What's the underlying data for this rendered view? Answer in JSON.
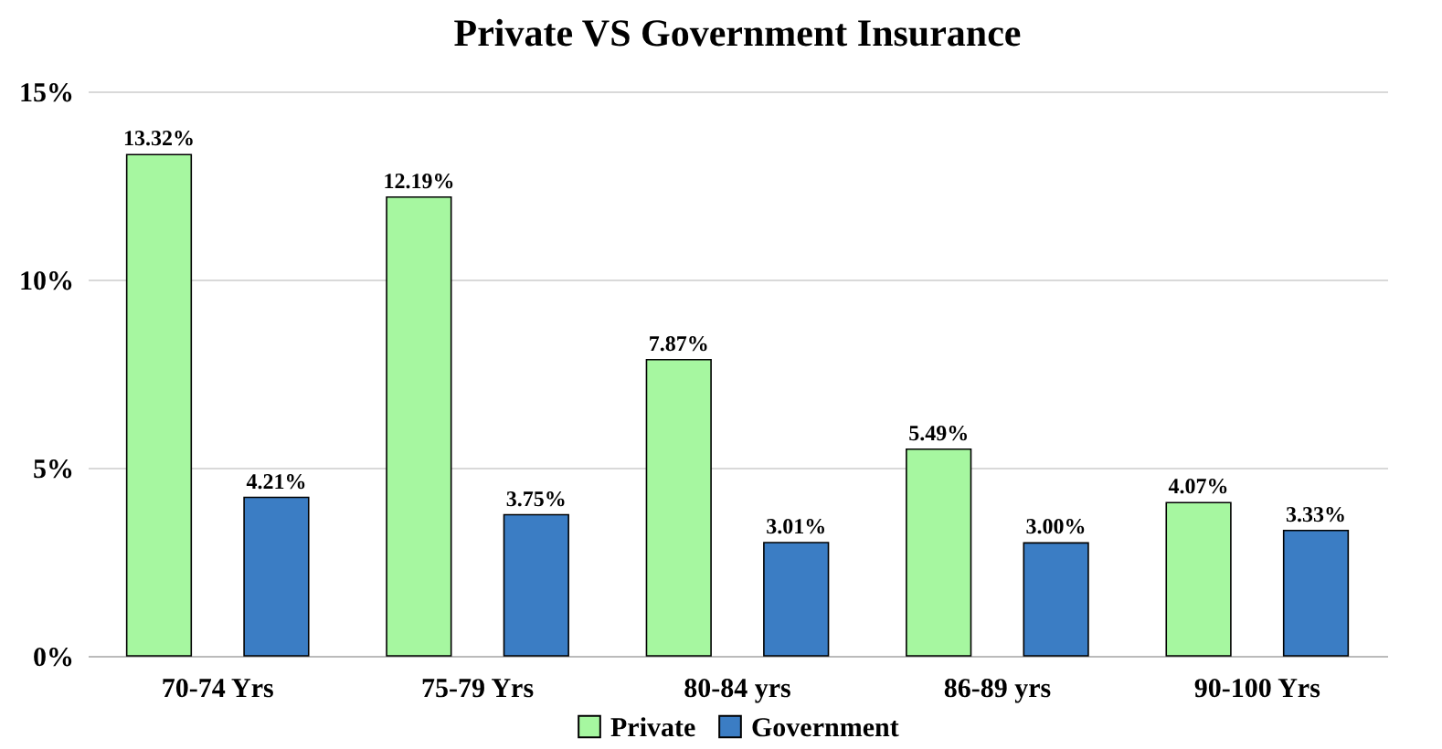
{
  "chart_data": {
    "type": "bar",
    "title": "Private VS Government Insurance",
    "categories": [
      "70-74 Yrs",
      "75-79 Yrs",
      "80-84 yrs",
      "86-89 yrs",
      "90-100 Yrs"
    ],
    "series": [
      {
        "name": "Private",
        "color": "#a6f7a0",
        "values": [
          13.32,
          12.19,
          7.87,
          5.49,
          4.07
        ],
        "value_labels": [
          "13.32%",
          "12.19%",
          "7.87%",
          "5.49%",
          "4.07%"
        ]
      },
      {
        "name": "Government",
        "color": "#3b7dc4",
        "values": [
          4.21,
          3.75,
          3.01,
          3.0,
          3.33
        ],
        "value_labels": [
          "4.21%",
          "3.75%",
          "3.01%",
          "3.00%",
          "3.33%"
        ]
      }
    ],
    "ylim": [
      0,
      15
    ],
    "yticks": [
      {
        "value": 0,
        "label": "0%"
      },
      {
        "value": 5,
        "label": "5%"
      },
      {
        "value": 10,
        "label": "10%"
      },
      {
        "value": 15,
        "label": "15%"
      }
    ],
    "grid": "y",
    "legend": "bottom"
  }
}
